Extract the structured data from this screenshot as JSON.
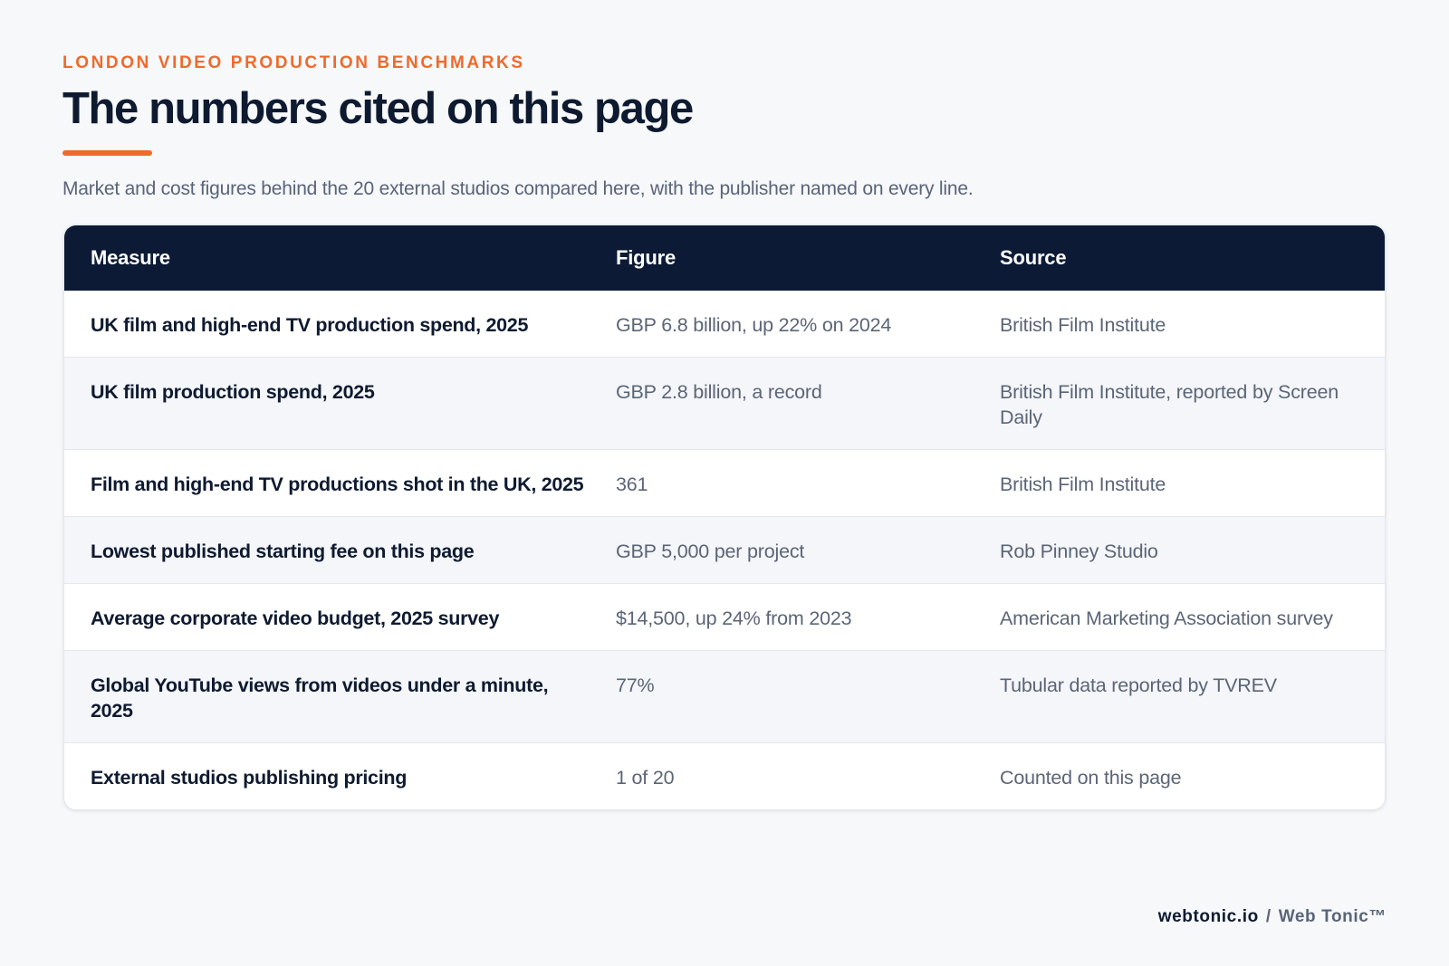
{
  "header": {
    "eyebrow": "LONDON VIDEO PRODUCTION BENCHMARKS",
    "title": "The numbers cited on this page",
    "subtitle": "Market and cost figures behind the 20 external studios compared here, with the publisher named on every line.",
    "accent_color": "#ef6a2c"
  },
  "table": {
    "columns": [
      "Measure",
      "Figure",
      "Source"
    ],
    "header_color": "#0c1a35",
    "rows": [
      {
        "measure": "UK film and high-end TV production spend, 2025",
        "figure": "GBP 6.8 billion, up 22% on 2024",
        "source": "British Film Institute"
      },
      {
        "measure": "UK film production spend, 2025",
        "figure": "GBP 2.8 billion, a record",
        "source": "British Film Institute, reported by Screen Daily"
      },
      {
        "measure": "Film and high-end TV productions shot in the UK, 2025",
        "figure": "361",
        "source": "British Film Institute"
      },
      {
        "measure": "Lowest published starting fee on this page",
        "figure": "GBP 5,000 per project",
        "source": "Rob Pinney Studio"
      },
      {
        "measure": "Average corporate video budget, 2025 survey",
        "figure": "$14,500, up 24% from 2023",
        "source": "American Marketing Association survey"
      },
      {
        "measure": "Global YouTube views from videos under a minute, 2025",
        "figure": "77%",
        "source": "Tubular data reported by TVREV"
      },
      {
        "measure": "External studios publishing pricing",
        "figure": "1 of 20",
        "source": "Counted on this page"
      }
    ]
  },
  "footer": {
    "domain": "webtonic.io",
    "separator": "/",
    "brand": "Web Tonic™"
  }
}
